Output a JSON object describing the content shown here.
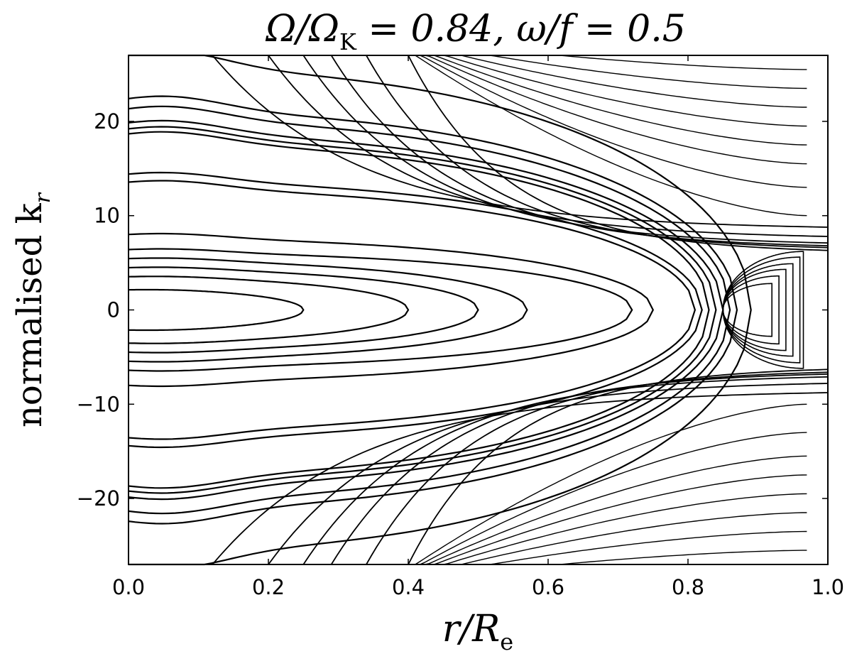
{
  "chart_data": {
    "type": "line",
    "title": "Ω/Ω_K = 0.84, ω/f = 0.5",
    "title_parts": {
      "num": "Ω/Ω",
      "sub": "K",
      "rest": " = 0.84, ω/f = 0.5"
    },
    "xlabel": "r/R_e",
    "xlabel_parts": {
      "main": "r/R",
      "sub": "e"
    },
    "ylabel": "normalised k_r",
    "ylabel_parts": {
      "main": "normalised k",
      "sub": "r"
    },
    "xlim": [
      0.0,
      1.0
    ],
    "ylim": [
      -27,
      27
    ],
    "xticks": [
      0.0,
      0.2,
      0.4,
      0.6,
      0.8,
      1.0
    ],
    "xtick_labels": [
      "0.0",
      "0.2",
      "0.4",
      "0.6",
      "0.8",
      "1.0"
    ],
    "yticks": [
      20,
      10,
      0,
      -10,
      -20
    ],
    "ytick_labels": [
      "20",
      "10",
      "0",
      "−10",
      "−20"
    ],
    "grid": false,
    "legend": "none",
    "line_color": "#000000",
    "description_series": "ray trajectories of normalised radial wavenumber; each series symmetric about k_r = 0",
    "series": [
      {
        "kind": "closed",
        "turn_x": 0.25,
        "peak_y": 2.0,
        "peak_x": 0.05
      },
      {
        "kind": "closed",
        "turn_x": 0.4,
        "peak_y": 3.3,
        "peak_x": 0.05
      },
      {
        "kind": "closed",
        "turn_x": 0.5,
        "peak_y": 4.2,
        "peak_x": 0.05
      },
      {
        "kind": "closed",
        "turn_x": 0.57,
        "peak_y": 5.1,
        "peak_x": 0.05
      },
      {
        "kind": "closed",
        "turn_x": 0.72,
        "peak_y": 6.0,
        "peak_x": 0.05
      },
      {
        "kind": "closed",
        "turn_x": 0.75,
        "peak_y": 7.5,
        "peak_x": 0.05
      },
      {
        "kind": "closed",
        "turn_x": 0.81,
        "peak_y": 12.7,
        "peak_x": 0.05
      },
      {
        "kind": "closed",
        "turn_x": 0.82,
        "peak_y": 13.5,
        "peak_x": 0.05
      },
      {
        "kind": "closed",
        "turn_x": 0.83,
        "peak_y": 17.5,
        "peak_x": 0.05
      },
      {
        "kind": "closed",
        "turn_x": 0.84,
        "peak_y": 18.0,
        "peak_x": 0.05
      },
      {
        "kind": "closed",
        "turn_x": 0.85,
        "peak_y": 18.6,
        "peak_x": 0.05
      },
      {
        "kind": "closed",
        "turn_x": 0.86,
        "peak_y": 20.0,
        "peak_x": 0.05
      },
      {
        "kind": "closed",
        "turn_x": 0.87,
        "peak_y": 21.0,
        "peak_x": 0.05
      },
      {
        "kind": "closed",
        "turn_x": 0.89,
        "peak_y": 25.5,
        "peak_x": 0.05
      },
      {
        "kind": "loop",
        "turn_x": 0.92,
        "cap_y": 2.8
      },
      {
        "kind": "loop",
        "turn_x": 0.93,
        "cap_y": 3.6
      },
      {
        "kind": "loop",
        "turn_x": 0.94,
        "cap_y": 4.3
      },
      {
        "kind": "loop",
        "turn_x": 0.95,
        "cap_y": 4.9
      },
      {
        "kind": "loop",
        "turn_x": 0.96,
        "cap_y": 5.6
      },
      {
        "kind": "loop",
        "turn_x": 0.965,
        "cap_y": 6.2
      },
      {
        "kind": "open",
        "turn_x": 0.97,
        "min_y": 10.0
      },
      {
        "kind": "open",
        "turn_x": 0.97,
        "min_y": 13.0
      },
      {
        "kind": "open",
        "turn_x": 0.97,
        "min_y": 15.5
      },
      {
        "kind": "open",
        "turn_x": 0.97,
        "min_y": 17.5
      },
      {
        "kind": "open",
        "turn_x": 0.97,
        "min_y": 19.5
      },
      {
        "kind": "open",
        "turn_x": 0.97,
        "min_y": 21.5
      },
      {
        "kind": "open",
        "turn_x": 0.97,
        "min_y": 23.5
      },
      {
        "kind": "open",
        "turn_x": 0.97,
        "min_y": 25.5
      },
      {
        "kind": "edge",
        "x0": 0.12,
        "y0": 27,
        "x1": 1.0,
        "y1": 8.5
      },
      {
        "kind": "edge",
        "x0": 0.2,
        "y0": 27,
        "x1": 1.0,
        "y1": 7.5
      },
      {
        "kind": "edge",
        "x0": 0.25,
        "y0": 27,
        "x1": 1.0,
        "y1": 6.8
      },
      {
        "kind": "edge",
        "x0": 0.29,
        "y0": 27,
        "x1": 1.0,
        "y1": 6.5
      },
      {
        "kind": "edge",
        "x0": 0.34,
        "y0": 27,
        "x1": 1.0,
        "y1": 6.3
      },
      {
        "kind": "edge",
        "x0": 0.4,
        "y0": 27,
        "x1": 1.0,
        "y1": 6.0
      }
    ]
  }
}
